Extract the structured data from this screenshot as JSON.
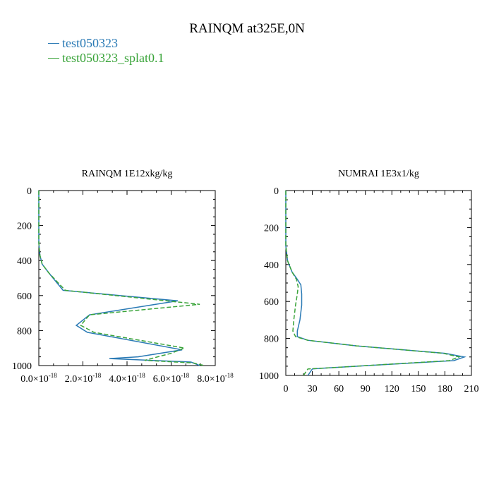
{
  "title": "RAINQM at325E,0N",
  "legend": [
    {
      "label": "test050323",
      "color": "#2a7ab5",
      "dash": "solid"
    },
    {
      "label": "test050323_splat0.1",
      "color": "#3aa43a",
      "dash": "dashed"
    }
  ],
  "chart_data": [
    {
      "type": "line",
      "title": "RAINQM  1E12xkg/kg",
      "orientation": "vertical-profile",
      "xlim": [
        0,
        8e-18
      ],
      "ylim": [
        1000,
        0
      ],
      "y_ticks": [
        0,
        200,
        400,
        600,
        800,
        1000
      ],
      "x_ticks": [
        0,
        2e-18,
        4e-18,
        6e-18,
        8e-18
      ],
      "x_tick_labels": [
        {
          "mantissa": "0.0",
          "exp": "-18"
        },
        {
          "mantissa": "2.0",
          "exp": "-18"
        },
        {
          "mantissa": "4.0",
          "exp": "-18"
        },
        {
          "mantissa": "6.0",
          "exp": "-18"
        },
        {
          "mantissa": "8.0",
          "exp": "-18"
        }
      ],
      "grid": false,
      "series": [
        {
          "name": "test050323",
          "color": "#2a7ab5",
          "dash": "solid",
          "points": [
            [
              0,
              0
            ],
            [
              0,
              300
            ],
            [
              5e-20,
              370
            ],
            [
              1.5e-19,
              420
            ],
            [
              4.5e-19,
              470
            ],
            [
              1.1e-18,
              570
            ],
            [
              6.3e-18,
              630
            ],
            [
              2.3e-18,
              710
            ],
            [
              1.7e-18,
              770
            ],
            [
              2.2e-18,
              810
            ],
            [
              6.5e-18,
              910
            ],
            [
              4.5e-18,
              950
            ],
            [
              3.2e-18,
              960
            ],
            [
              6.9e-18,
              980
            ],
            [
              7.3e-18,
              1000
            ]
          ]
        },
        {
          "name": "test050323_splat0.1",
          "color": "#3aa43a",
          "dash": "dashed",
          "points": [
            [
              0,
              0
            ],
            [
              0,
              300
            ],
            [
              5e-20,
              370
            ],
            [
              1.5e-19,
              420
            ],
            [
              4.5e-19,
              470
            ],
            [
              1.2e-18,
              570
            ],
            [
              7.3e-18,
              650
            ],
            [
              2.3e-18,
              710
            ],
            [
              1.9e-18,
              770
            ],
            [
              2.5e-18,
              810
            ],
            [
              6.6e-18,
              900
            ],
            [
              6e-18,
              930
            ],
            [
              4.8e-18,
              970
            ],
            [
              7e-18,
              985
            ],
            [
              7.5e-18,
              1000
            ]
          ]
        }
      ]
    },
    {
      "type": "line",
      "title": "NUMRAI  1E3x1/kg",
      "orientation": "vertical-profile",
      "xlim": [
        0,
        210
      ],
      "ylim": [
        1000,
        0
      ],
      "y_ticks": [
        0,
        200,
        400,
        600,
        800,
        1000
      ],
      "x_ticks": [
        0,
        30,
        60,
        90,
        120,
        150,
        180,
        210
      ],
      "grid": false,
      "series": [
        {
          "name": "test050323",
          "color": "#2a7ab5",
          "dash": "solid",
          "points": [
            [
              0,
              0
            ],
            [
              0,
              300
            ],
            [
              2,
              380
            ],
            [
              7,
              440
            ],
            [
              13,
              480
            ],
            [
              17,
              510
            ],
            [
              18,
              560
            ],
            [
              18,
              620
            ],
            [
              16,
              700
            ],
            [
              13,
              760
            ],
            [
              13,
              790
            ],
            [
              25,
              810
            ],
            [
              80,
              840
            ],
            [
              180,
              880
            ],
            [
              202,
              900
            ],
            [
              190,
              920
            ],
            [
              45,
              960
            ],
            [
              30,
              965
            ],
            [
              25,
              1000
            ]
          ]
        },
        {
          "name": "test050323_splat0.1",
          "color": "#3aa43a",
          "dash": "dashed",
          "points": [
            [
              0,
              0
            ],
            [
              0,
              300
            ],
            [
              2,
              380
            ],
            [
              7,
              440
            ],
            [
              12,
              480
            ],
            [
              14,
              520
            ],
            [
              13,
              560
            ],
            [
              11,
              620
            ],
            [
              9,
              700
            ],
            [
              8,
              760
            ],
            [
              11,
              790
            ],
            [
              25,
              810
            ],
            [
              80,
              840
            ],
            [
              178,
              880
            ],
            [
              196,
              900
            ],
            [
              185,
              920
            ],
            [
              45,
              960
            ],
            [
              25,
              965
            ],
            [
              20,
              1000
            ]
          ]
        }
      ]
    }
  ]
}
